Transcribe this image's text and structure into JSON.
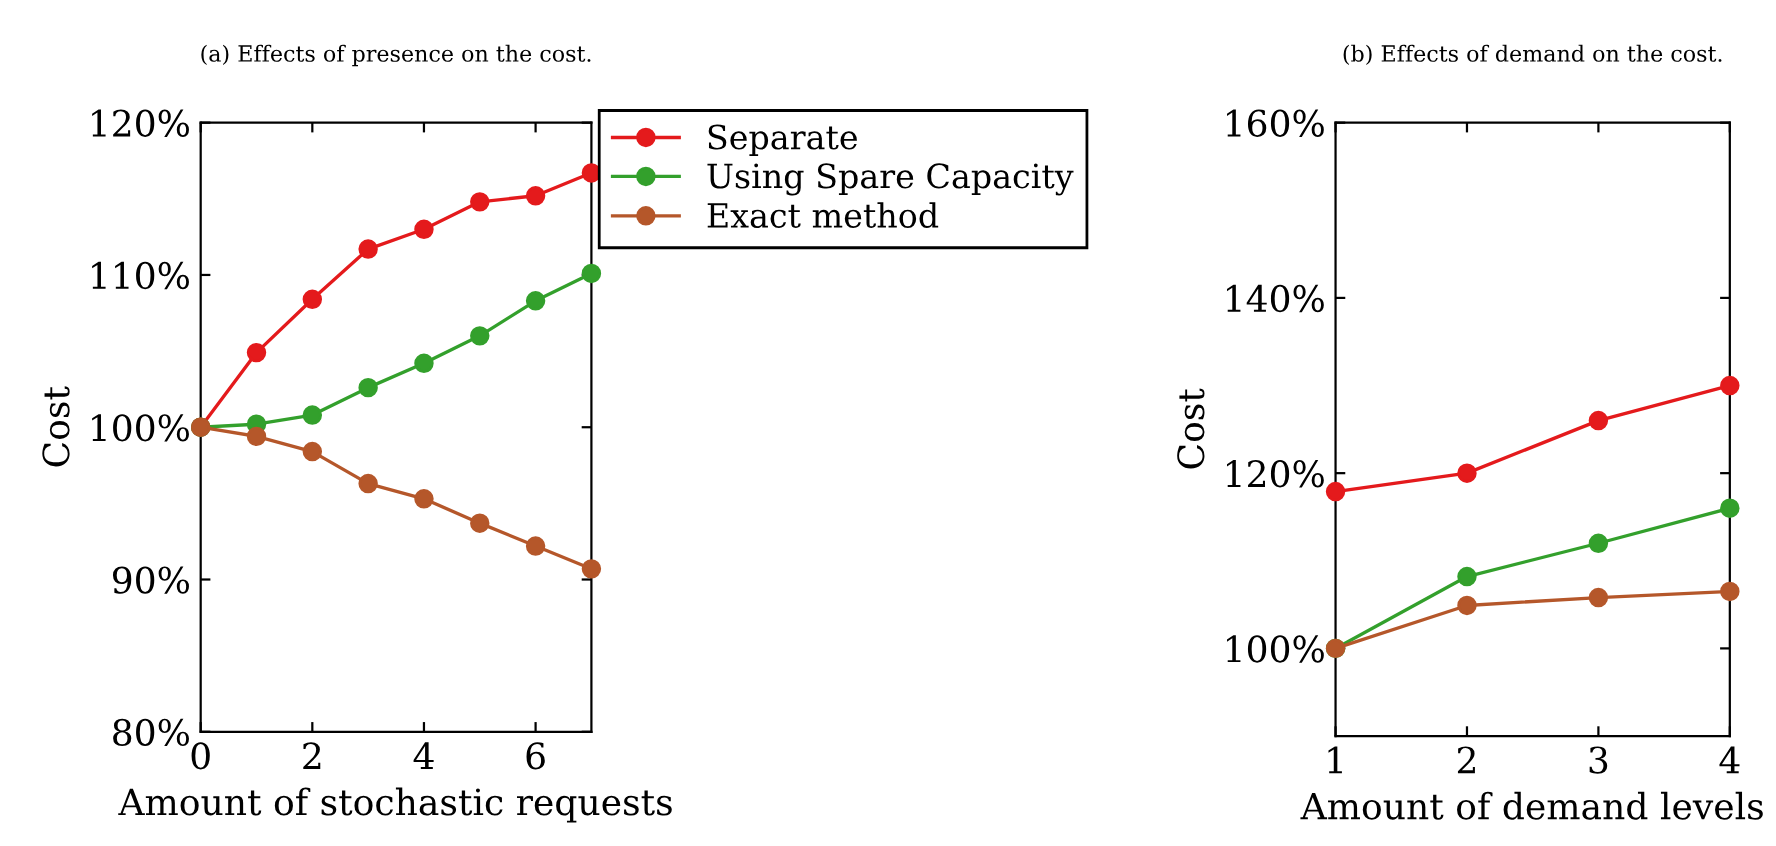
{
  "chart_data": [
    {
      "type": "line",
      "title": "(a) Effects of presence on the cost.",
      "xlabel": "Amount of stochastic requests",
      "ylabel": "Cost",
      "x": [
        0,
        1,
        2,
        3,
        4,
        5,
        6,
        7
      ],
      "xlim": [
        0,
        7
      ],
      "xticks": [
        0,
        2,
        4,
        6
      ],
      "ylim": [
        80,
        120
      ],
      "yticks": [
        {
          "value": 80,
          "label": "80%"
        },
        {
          "value": 90,
          "label": "90%"
        },
        {
          "value": 100,
          "label": "100%"
        },
        {
          "value": 110,
          "label": "110%"
        },
        {
          "value": 120,
          "label": "120%"
        }
      ],
      "marker": "circle",
      "legend": "right",
      "grid": false,
      "series": [
        {
          "name": "Separate",
          "color": "#e41a1c",
          "values": [
            100,
            104.9,
            108.4,
            111.7,
            113.0,
            114.8,
            115.2,
            116.7
          ]
        },
        {
          "name": "Using Spare Capacity",
          "color": "#33a02c",
          "values": [
            100,
            100.2,
            100.8,
            102.6,
            104.2,
            106.0,
            108.3,
            110.1
          ]
        },
        {
          "name": "Exact method",
          "color": "#b5572a",
          "values": [
            100,
            99.4,
            98.4,
            96.3,
            95.3,
            93.7,
            92.2,
            90.7
          ]
        }
      ]
    },
    {
      "type": "line",
      "title": "(b) Effects of demand on the cost.",
      "xlabel": "Amount of demand levels",
      "ylabel": "Cost",
      "x": [
        1,
        2,
        3,
        4
      ],
      "xlim": [
        1,
        4
      ],
      "xticks": [
        1,
        2,
        3,
        4
      ],
      "ylim": [
        90,
        160
      ],
      "yticks": [
        {
          "value": 100,
          "label": "100%"
        },
        {
          "value": 120,
          "label": "120%"
        },
        {
          "value": 140,
          "label": "140%"
        },
        {
          "value": 160,
          "label": "160%"
        }
      ],
      "marker": "circle",
      "grid": false,
      "series": [
        {
          "color": "#e41a1c",
          "values": [
            117.9,
            120.0,
            126.0,
            130.0
          ]
        },
        {
          "color": "#33a02c",
          "values": [
            100,
            108.2,
            112.0,
            116.0
          ]
        },
        {
          "color": "#b5572a",
          "values": [
            100,
            104.9,
            105.8,
            106.5
          ]
        }
      ]
    }
  ]
}
